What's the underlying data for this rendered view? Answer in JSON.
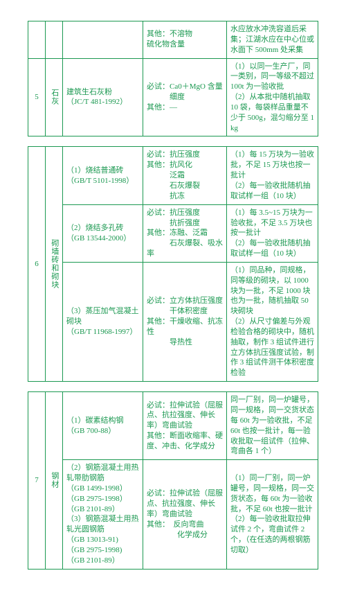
{
  "tables": [
    {
      "rows": [
        {
          "idx": "",
          "cat": "",
          "std": "",
          "test": "其他：不溶物\n硫化物含量",
          "batch": "水应放水冲洗容道后采集；江湖水应在中心位或水面下 500mm 处采集"
        },
        {
          "idx": "5",
          "cat": "石灰",
          "std": "建筑生石灰粉\n（JC/T 481-1992）",
          "test": "必试：Ca0＋MgO 含量\n　　　细度\n其他：—",
          "batch": "（1）以同一生产厂，同一类别，同一等级不超过 100t 为一验收批\n（2）从本批中随机抽取 10 袋，每袋样品重量不少于 500g，混匀缩分至 1kg"
        }
      ]
    },
    {
      "rows": [
        {
          "idx": "6",
          "cat": "砌墙砖和砌块",
          "rowspan": 3,
          "std": "（1）烧结普通砖\n（GB/T 5101-1998）",
          "test": "必试：抗压强度\n其他：抗风化\n　　　泛霜\n　　　石灰爆裂\n　　　抗冻",
          "batch": "（1）每 15 万块为一验收批，不足 15 万块也按一批计\n（2）每一验收批随机抽取试样一组（10 块）"
        },
        {
          "std": "（2）烧结多孔砖\n（GB 13544-2000）",
          "test": "必试：抗压强度\n　　　抗折强度\n其他：冻融、泛霜\n　　　石灰爆裂、吸水率",
          "batch": "（1）每 3.5~15 万块为一验收批，不足 3.5 万块也按一批计\n（2）每一验收批随机抽取试样一组（10 块）"
        },
        {
          "std": "（3）蒸压加气混凝土砌块\n（GB/T 11968-1997）",
          "test": "必试：立方体抗压强度\n　　　干体积密度\n其他：干燥收缩、抗冻性\n　　　导热性",
          "batch": "（1）同品种，同规格，同等级的砌块，以 1000 块为一批，不足 1000 块也为一批，随机抽取 50 块砌块\n（2）从尺寸偏差与外观检验合格的砌块中，随机抽取，制作 3 组试件进行立方体抗压强度试验，制作 3 组试件测干体积密度检验"
        }
      ]
    },
    {
      "rows": [
        {
          "idx": "7",
          "cat": "钢材",
          "rowspan": 2,
          "std": "（1）碳素结构钢\n（GB 700-88）",
          "test": "必试：拉伸试验（屈服点、抗拉强度、伸长率）弯曲试验\n其他：断面收缩率、硬度、冲击、化学成分",
          "batch": "同一厂别，同一炉罐号，同一规格，同一交货状态每 60t 为一验收批，不足 60t 也按一批计，每一验收批取一组试件（拉伸、弯曲各 1 个）"
        },
        {
          "std": "（2）钢筋混凝土用热轧带肋钢筋\n（GB 1499-1998）\n（GB 2975-1998）\n（GB 2101-89）\n（3）钢筋混凝土用热轧光圆钢筋\n（GB 13013-91)\n（GB 2975-1998)\n（GB 2101-89）",
          "test": "必试：拉伸试验（屈服点、抗拉强度、伸长率）弯曲试验\n其他：　反向弯曲\n　　　　化学成分",
          "batch": "（1）同一厂别，同一炉罐号，同一规格，同一交货状态，每 60t 为一验收批，不足 60t 也按一批计\n（2）每一验收批取拉伸试件 2 个，弯曲试件 2 个，（在任选的两根钢筋切取）"
        }
      ]
    }
  ]
}
